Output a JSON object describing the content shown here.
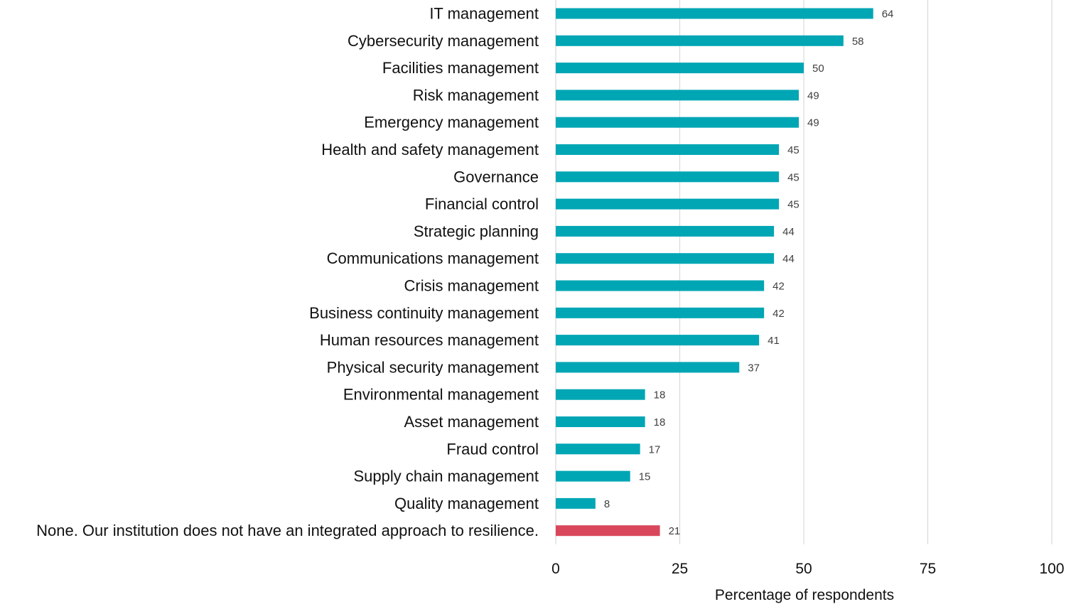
{
  "chart_data": {
    "type": "bar",
    "orientation": "horizontal",
    "categories": [
      "IT management",
      "Cybersecurity management",
      "Facilities management",
      "Risk management",
      "Emergency management",
      "Health and safety management",
      "Governance",
      "Financial control",
      "Strategic planning",
      "Communications management",
      "Crisis management",
      "Business continuity management",
      "Human resources management",
      "Physical security management",
      "Environmental management",
      "Asset management",
      "Fraud control",
      "Supply chain management",
      "Quality management",
      "None. Our institution does not have an integrated approach to resilience."
    ],
    "values": [
      64,
      58,
      50,
      49,
      49,
      45,
      45,
      45,
      44,
      44,
      42,
      42,
      41,
      37,
      18,
      18,
      17,
      15,
      8,
      21
    ],
    "bar_colors": [
      "#00a6b4",
      "#00a6b4",
      "#00a6b4",
      "#00a6b4",
      "#00a6b4",
      "#00a6b4",
      "#00a6b4",
      "#00a6b4",
      "#00a6b4",
      "#00a6b4",
      "#00a6b4",
      "#00a6b4",
      "#00a6b4",
      "#00a6b4",
      "#00a6b4",
      "#00a6b4",
      "#00a6b4",
      "#00a6b4",
      "#00a6b4",
      "#d9475c"
    ],
    "xlabel": "Percentage of respondents",
    "ylabel": "",
    "xlim": [
      0,
      100
    ],
    "xticks": [
      0,
      25,
      50,
      75,
      100
    ],
    "grid": "vertical",
    "legend": "none"
  }
}
